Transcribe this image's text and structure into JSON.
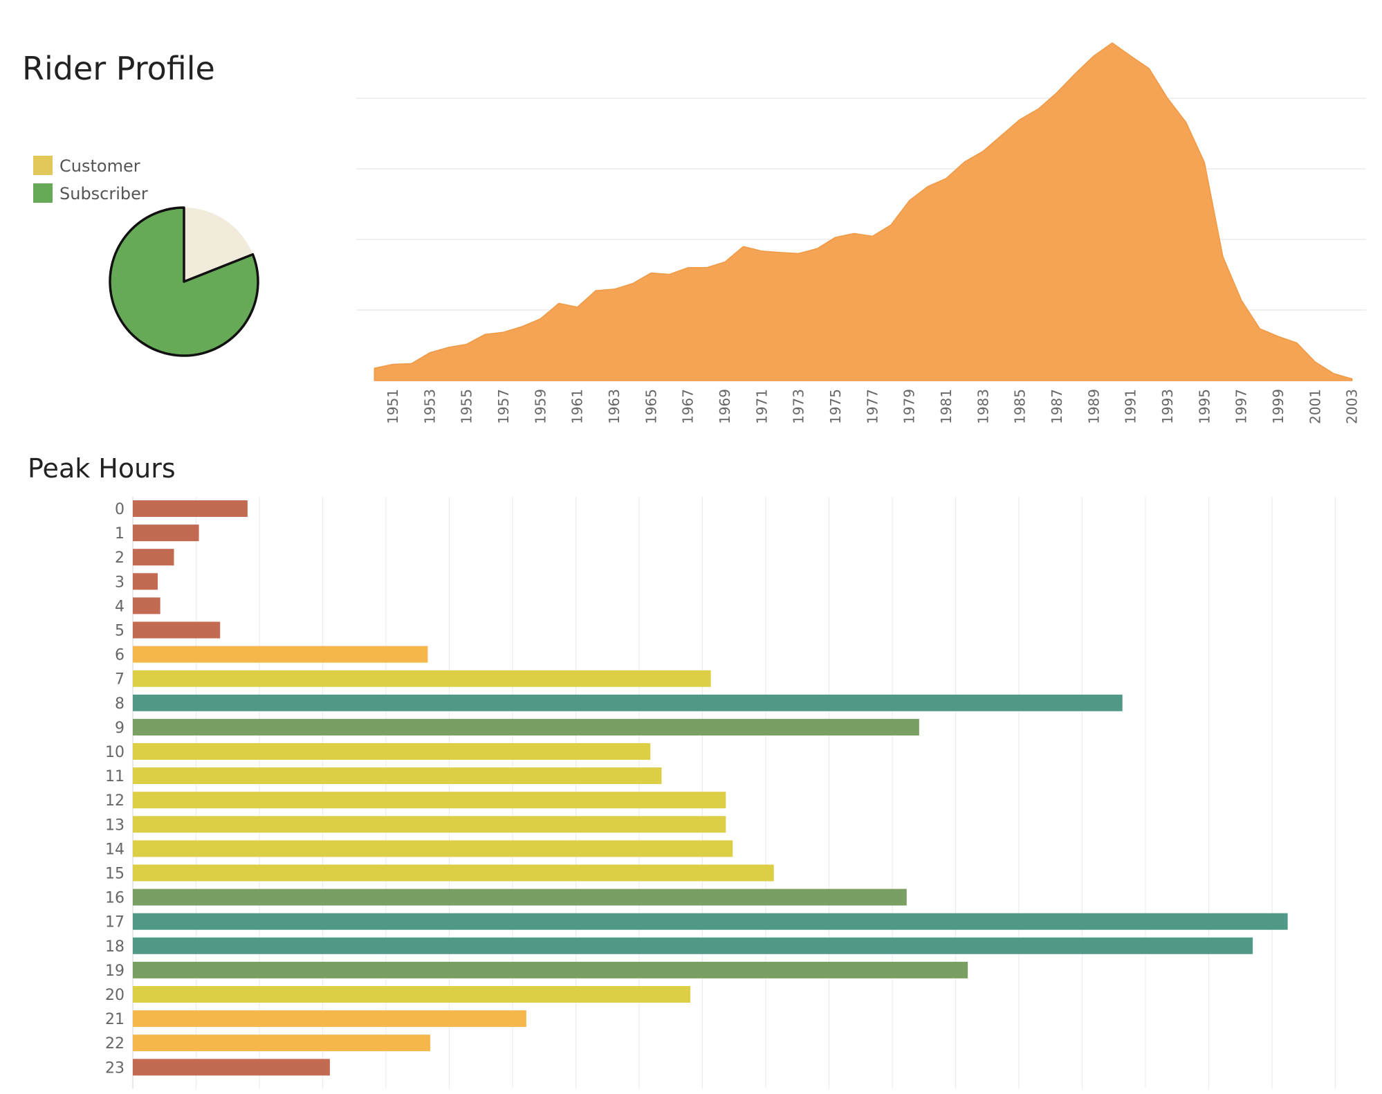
{
  "colors": {
    "customer": "#e2c75a",
    "subscriber": "#66a957",
    "pie_customer_fill": "#f1ebdc",
    "area_fill": "#f4a454",
    "bar_red": "#c36a52",
    "bar_orange": "#f5b64c",
    "bar_yellow": "#dccf45",
    "bar_olive": "#7a9f62",
    "bar_teal": "#4f9986",
    "grid": "#ececec"
  },
  "rider_profile": {
    "title": "Rider Profile",
    "legend": [
      {
        "label": "Customer",
        "color": "#e2c75a"
      },
      {
        "label": "Subscriber",
        "color": "#66a957"
      }
    ]
  },
  "peak_hours": {
    "title": "Peak Hours"
  },
  "chart_data": [
    {
      "type": "pie",
      "slices": [
        {
          "label": "Customer",
          "value": 19
        },
        {
          "label": "Subscriber",
          "value": 81
        }
      ]
    },
    {
      "type": "area",
      "x_tick_labels": [
        "1951",
        "1953",
        "1955",
        "1957",
        "1959",
        "1961",
        "1963",
        "1965",
        "1967",
        "1969",
        "1971",
        "1973",
        "1975",
        "1977",
        "1979",
        "1981",
        "1983",
        "1985",
        "1987",
        "1989",
        "1991",
        "1993",
        "1995",
        "1997",
        "1999",
        "2001",
        "2003"
      ],
      "x": [
        1950,
        1951,
        1952,
        1953,
        1954,
        1955,
        1956,
        1957,
        1958,
        1959,
        1960,
        1961,
        1962,
        1963,
        1964,
        1965,
        1966,
        1967,
        1968,
        1969,
        1970,
        1971,
        1972,
        1973,
        1974,
        1975,
        1976,
        1977,
        1978,
        1979,
        1980,
        1981,
        1982,
        1983,
        1984,
        1985,
        1986,
        1987,
        1988,
        1989,
        1990,
        1991,
        1992,
        1993,
        1994,
        1995,
        1996,
        1997,
        1998,
        1999,
        2000,
        2001,
        2002,
        2003
      ],
      "y": [
        3.5,
        4.6,
        4.8,
        7.9,
        9.4,
        10.3,
        13.1,
        13.7,
        15.3,
        17.5,
        21.9,
        20.8,
        25.5,
        25.9,
        27.5,
        30.5,
        30.1,
        32.0,
        32.0,
        33.6,
        38.0,
        36.7,
        36.3,
        36.0,
        37.4,
        40.6,
        41.7,
        40.9,
        44.1,
        51.0,
        55.0,
        57.3,
        62.0,
        65.0,
        69.5,
        74.0,
        77.0,
        81.6,
        87.0,
        92.0,
        95.7,
        92.0,
        88.4,
        80.0,
        73.2,
        61.8,
        35.1,
        22.8,
        14.7,
        12.5,
        10.7,
        5.3,
        2.0,
        0.5
      ],
      "ylim": [
        0,
        100
      ],
      "grid": true
    },
    {
      "type": "bar",
      "orientation": "horizontal",
      "categories": [
        "0",
        "1",
        "2",
        "3",
        "4",
        "5",
        "6",
        "7",
        "8",
        "9",
        "10",
        "11",
        "12",
        "13",
        "14",
        "15",
        "16",
        "17",
        "18",
        "19",
        "20",
        "21",
        "22",
        "23"
      ],
      "values": [
        1.84,
        1.06,
        0.66,
        0.4,
        0.44,
        1.4,
        4.73,
        9.27,
        15.87,
        12.61,
        8.3,
        8.48,
        9.51,
        9.51,
        9.62,
        10.28,
        12.41,
        18.52,
        17.96,
        13.39,
        8.94,
        6.31,
        4.77,
        3.16
      ],
      "colors": [
        "#c36a52",
        "#c36a52",
        "#c36a52",
        "#c36a52",
        "#c36a52",
        "#c36a52",
        "#f5b64c",
        "#dccf45",
        "#4f9986",
        "#7a9f62",
        "#dccf45",
        "#dccf45",
        "#dccf45",
        "#dccf45",
        "#dccf45",
        "#dccf45",
        "#7a9f62",
        "#4f9986",
        "#4f9986",
        "#7a9f62",
        "#dccf45",
        "#f5b64c",
        "#f5b64c",
        "#c36a52"
      ],
      "xlim": [
        0,
        19.5
      ],
      "grid": true
    }
  ]
}
